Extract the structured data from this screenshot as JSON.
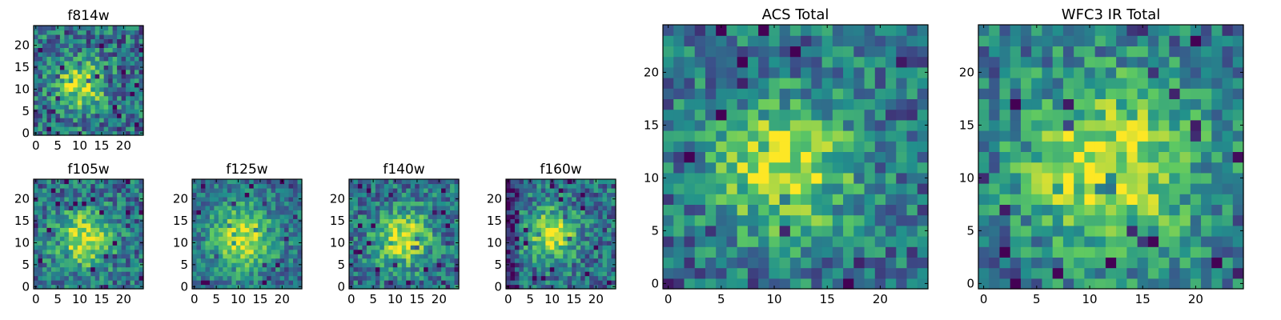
{
  "chart_data": [
    {
      "type": "heatmap",
      "title": "f814w",
      "grid_size": 25,
      "xticks": [
        "0",
        "5",
        "10",
        "15",
        "20"
      ],
      "yticks": [
        "0",
        "5",
        "10",
        "15",
        "20"
      ],
      "center": [
        10,
        11
      ],
      "sigma": 4.0,
      "noise": 0.35,
      "seed": 814,
      "edge_dark": false
    },
    {
      "type": "heatmap",
      "title": "f105w",
      "grid_size": 25,
      "xticks": [
        "0",
        "5",
        "10",
        "15",
        "20"
      ],
      "yticks": [
        "0",
        "5",
        "10",
        "15",
        "20"
      ],
      "center": [
        11,
        11
      ],
      "sigma": 4.5,
      "noise": 0.3,
      "seed": 105,
      "edge_dark": false
    },
    {
      "type": "heatmap",
      "title": "f125w",
      "grid_size": 25,
      "xticks": [
        "0",
        "5",
        "10",
        "15",
        "20"
      ],
      "yticks": [
        "0",
        "5",
        "10",
        "15",
        "20"
      ],
      "center": [
        11,
        11
      ],
      "sigma": 5.0,
      "noise": 0.25,
      "seed": 125,
      "edge_dark": false
    },
    {
      "type": "heatmap",
      "title": "f140w",
      "grid_size": 25,
      "xticks": [
        "0",
        "5",
        "10",
        "15",
        "20"
      ],
      "yticks": [
        "0",
        "5",
        "10",
        "15",
        "20"
      ],
      "center": [
        12,
        11
      ],
      "sigma": 4.5,
      "noise": 0.3,
      "seed": 140,
      "edge_dark": false
    },
    {
      "type": "heatmap",
      "title": "f160w",
      "grid_size": 25,
      "xticks": [
        "0",
        "5",
        "10",
        "15",
        "20"
      ],
      "yticks": [
        "0",
        "5",
        "10",
        "15",
        "20"
      ],
      "center": [
        10,
        12
      ],
      "sigma": 4.0,
      "noise": 0.3,
      "seed": 160,
      "edge_dark": true
    },
    {
      "type": "heatmap",
      "title": "ACS Total",
      "grid_size": 25,
      "xticks": [
        "0",
        "5",
        "10",
        "15",
        "20"
      ],
      "yticks": [
        "0",
        "5",
        "10",
        "15",
        "20"
      ],
      "center": [
        11,
        11
      ],
      "sigma": 4.5,
      "noise": 0.3,
      "seed": 901,
      "edge_dark": false
    },
    {
      "type": "heatmap",
      "title": "WFC3 IR Total",
      "grid_size": 25,
      "xticks": [
        "0",
        "5",
        "10",
        "15",
        "20"
      ],
      "yticks": [
        "0",
        "5",
        "10",
        "15",
        "20"
      ],
      "center": [
        12,
        11
      ],
      "sigma": 6.0,
      "noise": 0.3,
      "seed": 902,
      "edge_dark": false
    }
  ],
  "colormap": [
    "#440154",
    "#3b528b",
    "#21918c",
    "#5ec962",
    "#fde725"
  ]
}
